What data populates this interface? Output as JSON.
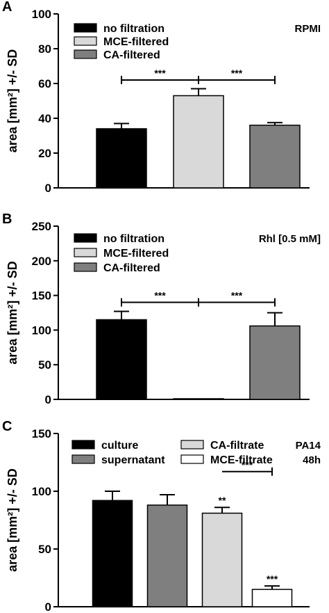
{
  "chart_data": [
    {
      "type": "bar",
      "panel": "A",
      "note": [
        "RPMI"
      ],
      "ylabel": "area [mm²] +/- SD",
      "ylim": [
        0,
        100
      ],
      "yticks": [
        "0",
        "20",
        "40",
        "60",
        "80",
        "100"
      ],
      "legend_columns": 1,
      "series": [
        {
          "name": "no filtration",
          "value": 34,
          "error": 3,
          "color": "#000000"
        },
        {
          "name": "MCE-filtered",
          "value": 53,
          "error": 4,
          "color": "#d9d9d9"
        },
        {
          "name": "CA-filtered",
          "value": 36,
          "error": 1.5,
          "color": "#7f7f7f"
        }
      ],
      "brackets": [
        {
          "from": 0,
          "to": 1,
          "label": "***",
          "y": 62
        },
        {
          "from": 1,
          "to": 2,
          "label": "***",
          "y": 62
        }
      ],
      "bar_labels": []
    },
    {
      "type": "bar",
      "panel": "B",
      "note": [
        "Rhl [0.5 mM]"
      ],
      "ylabel": "area [mm²] +/- SD",
      "ylim": [
        0,
        250
      ],
      "yticks": [
        "0",
        "50",
        "100",
        "150",
        "200",
        "250"
      ],
      "legend_columns": 1,
      "series": [
        {
          "name": "no filtration",
          "value": 115,
          "error": 12,
          "color": "#000000"
        },
        {
          "name": "MCE-filtered",
          "value": 1,
          "error": 0,
          "color": "#d9d9d9"
        },
        {
          "name": "CA-filtered",
          "value": 106,
          "error": 19,
          "color": "#7f7f7f"
        }
      ],
      "brackets": [
        {
          "from": 0,
          "to": 1,
          "label": "***",
          "y": 140
        },
        {
          "from": 1,
          "to": 2,
          "label": "***",
          "y": 140
        }
      ],
      "bar_labels": []
    },
    {
      "type": "bar",
      "panel": "C",
      "note": [
        "PA14",
        "48h"
      ],
      "ylabel": "area [mm²] +/- SD",
      "ylim": [
        0,
        150
      ],
      "yticks": [
        "0",
        "50",
        "100",
        "150"
      ],
      "legend_columns": 2,
      "series": [
        {
          "name": "culture",
          "value": 92,
          "error": 8,
          "color": "#000000"
        },
        {
          "name": "supernatant",
          "value": 88,
          "error": 9,
          "color": "#7f7f7f"
        },
        {
          "name": "CA-filtrate",
          "value": 81,
          "error": 5,
          "color": "#d9d9d9"
        },
        {
          "name": "MCE-filtrate",
          "value": 15,
          "error": 3,
          "color": "#ffffff"
        }
      ],
      "brackets": [
        {
          "from": 2,
          "to": 3,
          "label": "***",
          "y": 117,
          "left_tick": false
        }
      ],
      "bar_labels": [
        {
          "bar": 2,
          "label": "**"
        },
        {
          "bar": 3,
          "label": "***"
        }
      ]
    }
  ]
}
